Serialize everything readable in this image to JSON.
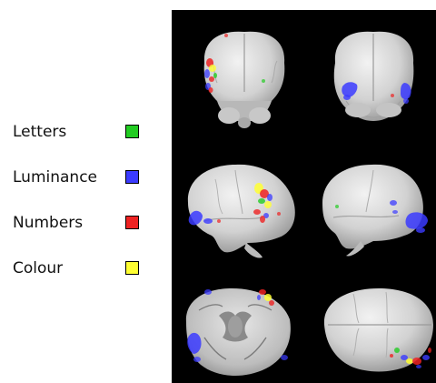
{
  "legend": {
    "items": [
      {
        "label": "Letters",
        "color": "#22cc22"
      },
      {
        "label": "Luminance",
        "color": "#3b3bff"
      },
      {
        "label": "Numbers",
        "color": "#ee2222"
      },
      {
        "label": "Colour",
        "color": "#ffff33"
      }
    ]
  },
  "panel": {
    "background": "#000000",
    "views": [
      "front",
      "back",
      "left",
      "right",
      "bottom",
      "top"
    ]
  }
}
